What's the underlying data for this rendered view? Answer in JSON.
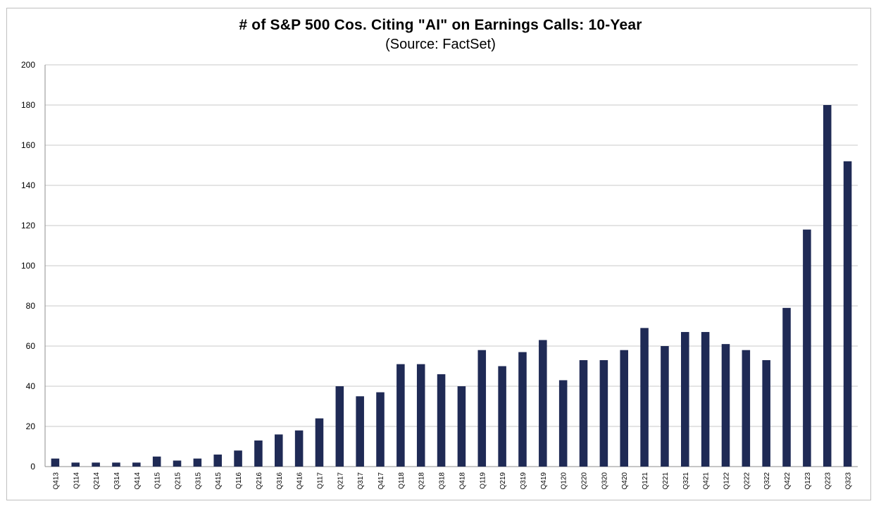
{
  "chart_data": {
    "type": "bar",
    "title": "# of S&P 500 Cos. Citing \"AI\" on Earnings Calls: 10-Year",
    "subtitle": "(Source: FactSet)",
    "categories": [
      "Q413",
      "Q114",
      "Q214",
      "Q314",
      "Q414",
      "Q115",
      "Q215",
      "Q315",
      "Q415",
      "Q116",
      "Q216",
      "Q316",
      "Q416",
      "Q117",
      "Q217",
      "Q317",
      "Q417",
      "Q118",
      "Q218",
      "Q318",
      "Q418",
      "Q119",
      "Q219",
      "Q319",
      "Q419",
      "Q120",
      "Q220",
      "Q320",
      "Q420",
      "Q121",
      "Q221",
      "Q321",
      "Q421",
      "Q122",
      "Q222",
      "Q322",
      "Q422",
      "Q123",
      "Q223",
      "Q323"
    ],
    "values": [
      4,
      2,
      2,
      2,
      2,
      5,
      3,
      4,
      6,
      8,
      13,
      16,
      18,
      24,
      40,
      35,
      37,
      51,
      51,
      46,
      40,
      58,
      50,
      57,
      63,
      43,
      53,
      53,
      58,
      69,
      60,
      67,
      67,
      61,
      58,
      53,
      79,
      118,
      180,
      152
    ],
    "ylim": [
      0,
      200
    ],
    "yticks": [
      0,
      20,
      40,
      60,
      80,
      100,
      120,
      140,
      160,
      180,
      200
    ],
    "grid": true,
    "bar_color": "#1f2a55",
    "grid_color": "#c8c8c8",
    "axis_color": "#8c8c8c"
  }
}
